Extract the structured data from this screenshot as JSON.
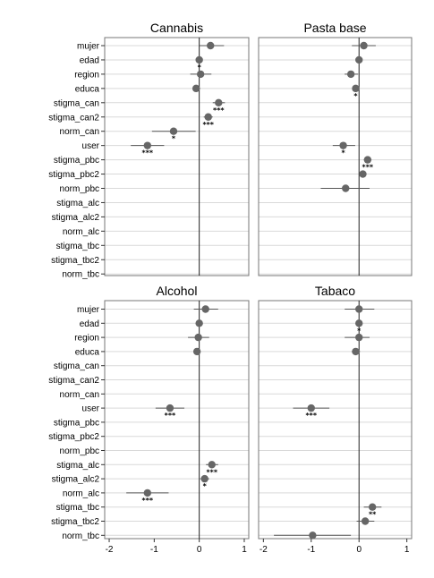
{
  "chart_data": {
    "type": "scatter",
    "variables": [
      "mujer",
      "edad",
      "region",
      "educa",
      "stigma_can",
      "stigma_can2",
      "norm_can",
      "user",
      "stigma_pbc",
      "stigma_pbc2",
      "norm_pbc",
      "stigma_alc",
      "stigma_alc2",
      "norm_alc",
      "stigma_tbc",
      "stigma_tbc2",
      "norm_tbc"
    ],
    "x_ticks": [
      -2,
      -1,
      0,
      1
    ],
    "xlim": [
      -2.1,
      1.1
    ],
    "reference_line": 0,
    "colors": {
      "point": "#666666",
      "line": "#555555",
      "grid": "#d9d9d9",
      "frame": "#777777"
    },
    "panels": [
      {
        "title": "Cannabis",
        "series": [
          {
            "var": "mujer",
            "est": 0.25,
            "lo": 0.0,
            "hi": 0.55,
            "sig": ""
          },
          {
            "var": "edad",
            "est": 0.0,
            "lo": -0.02,
            "hi": 0.02,
            "sig": "*"
          },
          {
            "var": "region",
            "est": 0.03,
            "lo": -0.2,
            "hi": 0.27,
            "sig": ""
          },
          {
            "var": "educa",
            "est": -0.07,
            "lo": -0.15,
            "hi": 0.02,
            "sig": ""
          },
          {
            "var": "stigma_can",
            "est": 0.43,
            "lo": 0.3,
            "hi": 0.57,
            "sig": "***"
          },
          {
            "var": "stigma_can2",
            "est": 0.2,
            "lo": 0.1,
            "hi": 0.3,
            "sig": "***"
          },
          {
            "var": "norm_can",
            "est": -0.57,
            "lo": -1.05,
            "hi": -0.08,
            "sig": "*"
          },
          {
            "var": "user",
            "est": -1.15,
            "lo": -1.52,
            "hi": -0.78,
            "sig": "***"
          }
        ]
      },
      {
        "title": "Pasta base",
        "series": [
          {
            "var": "mujer",
            "est": 0.1,
            "lo": -0.15,
            "hi": 0.35,
            "sig": ""
          },
          {
            "var": "edad",
            "est": 0.0,
            "lo": -0.02,
            "hi": 0.02,
            "sig": ""
          },
          {
            "var": "region",
            "est": -0.17,
            "lo": -0.3,
            "hi": -0.02,
            "sig": ""
          },
          {
            "var": "educa",
            "est": -0.07,
            "lo": -0.12,
            "hi": -0.02,
            "sig": "*"
          },
          {
            "var": "user",
            "est": -0.33,
            "lo": -0.55,
            "hi": -0.08,
            "sig": "*"
          },
          {
            "var": "stigma_pbc",
            "est": 0.18,
            "lo": 0.1,
            "hi": 0.26,
            "sig": "***"
          },
          {
            "var": "stigma_pbc2",
            "est": 0.08,
            "lo": 0.0,
            "hi": 0.15,
            "sig": ""
          },
          {
            "var": "norm_pbc",
            "est": -0.28,
            "lo": -0.8,
            "hi": 0.22,
            "sig": ""
          }
        ]
      },
      {
        "title": "Alcohol",
        "series": [
          {
            "var": "mujer",
            "est": 0.14,
            "lo": -0.12,
            "hi": 0.42,
            "sig": ""
          },
          {
            "var": "edad",
            "est": 0.0,
            "lo": -0.02,
            "hi": 0.02,
            "sig": ""
          },
          {
            "var": "region",
            "est": -0.02,
            "lo": -0.25,
            "hi": 0.22,
            "sig": ""
          },
          {
            "var": "educa",
            "est": -0.05,
            "lo": -0.12,
            "hi": 0.03,
            "sig": ""
          },
          {
            "var": "user",
            "est": -0.65,
            "lo": -0.97,
            "hi": -0.33,
            "sig": "***"
          },
          {
            "var": "stigma_alc",
            "est": 0.28,
            "lo": 0.15,
            "hi": 0.42,
            "sig": "***"
          },
          {
            "var": "stigma_alc2",
            "est": 0.12,
            "lo": 0.02,
            "hi": 0.22,
            "sig": "*"
          },
          {
            "var": "norm_alc",
            "est": -1.15,
            "lo": -1.62,
            "hi": -0.68,
            "sig": "***"
          }
        ]
      },
      {
        "title": "Tabaco",
        "series": [
          {
            "var": "mujer",
            "est": 0.0,
            "lo": -0.3,
            "hi": 0.32,
            "sig": ""
          },
          {
            "var": "edad",
            "est": 0.0,
            "lo": -0.02,
            "hi": 0.02,
            "sig": "*"
          },
          {
            "var": "region",
            "est": 0.0,
            "lo": -0.3,
            "hi": 0.22,
            "sig": ""
          },
          {
            "var": "educa",
            "est": -0.07,
            "lo": -0.15,
            "hi": 0.02,
            "sig": ""
          },
          {
            "var": "user",
            "est": -1.0,
            "lo": -1.38,
            "hi": -0.62,
            "sig": "***"
          },
          {
            "var": "stigma_tbc",
            "est": 0.28,
            "lo": 0.1,
            "hi": 0.47,
            "sig": "**"
          },
          {
            "var": "stigma_tbc2",
            "est": 0.13,
            "lo": -0.05,
            "hi": 0.32,
            "sig": ""
          },
          {
            "var": "norm_tbc",
            "est": -0.97,
            "lo": -1.78,
            "hi": -0.17,
            "sig": ""
          }
        ]
      }
    ]
  }
}
